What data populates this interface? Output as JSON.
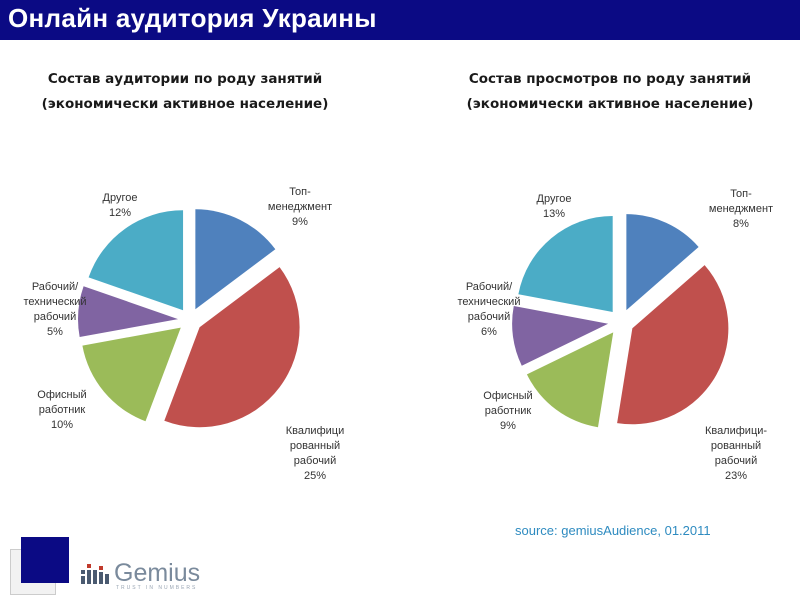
{
  "page": {
    "title": "Онлайн аудитория Украины"
  },
  "charts_text": {
    "left": {
      "line1": "Состав аудитории по роду занятий",
      "line2": "(экономически активное население)"
    },
    "right": {
      "line1": "Состав просмотров по роду занятий",
      "line2": "(экономически активное население)"
    }
  },
  "chart_data": [
    {
      "type": "pie",
      "title": "Состав аудитории по роду занятий (экономически активное население)",
      "slices": [
        {
          "label_lines": [
            "Топ-",
            "менеджмент",
            "9%"
          ],
          "value": 9,
          "color": "#4f81bd"
        },
        {
          "label_lines": [
            "Квалифици",
            "рованный",
            "рабочий",
            "25%"
          ],
          "value": 25,
          "color": "#c0504d"
        },
        {
          "label_lines": [
            "Офисный",
            "работник",
            "10%"
          ],
          "value": 10,
          "color": "#9bbb59"
        },
        {
          "label_lines": [
            "Рабочий/",
            "технический",
            "рабочий",
            "5%"
          ],
          "value": 5,
          "color": "#8064a2"
        },
        {
          "label_lines": [
            "Другое",
            "12%"
          ],
          "value": 12,
          "color": "#4bacc6"
        }
      ]
    },
    {
      "type": "pie",
      "title": "Состав просмотров по роду занятий (экономически активное население)",
      "slices": [
        {
          "label_lines": [
            "Топ-",
            "менеджмент",
            "8%"
          ],
          "value": 8,
          "color": "#4f81bd"
        },
        {
          "label_lines": [
            "Квалифици-",
            "рованный",
            "рабочий",
            "23%"
          ],
          "value": 23,
          "color": "#c0504d"
        },
        {
          "label_lines": [
            "Офисный",
            "работник",
            "9%"
          ],
          "value": 9,
          "color": "#9bbb59"
        },
        {
          "label_lines": [
            "Рабочий/",
            "технический",
            "рабочий",
            "6%"
          ],
          "value": 6,
          "color": "#8064a2"
        },
        {
          "label_lines": [
            "Другое",
            "13%"
          ],
          "value": 13,
          "color": "#4bacc6"
        }
      ]
    }
  ],
  "footer": {
    "source": "source: gemiusAudience, 01.2011",
    "logo_text": "Gemius",
    "logo_tagline": "TRUST IN NUMBERS"
  }
}
